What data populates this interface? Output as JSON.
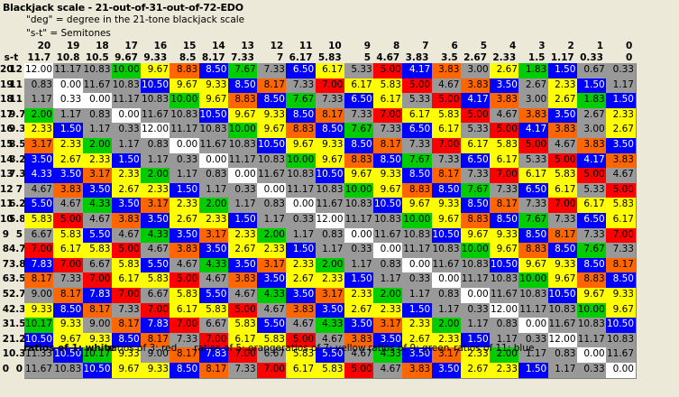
{
  "title": "Blackjack scale - 21-out-of-31-out-of-72-EDO",
  "notes": [
    "\"deg\" = degree in the 21-tone blackjack scale",
    "\"s-t\" = Semitones"
  ],
  "header": {
    "st_label": "s-t",
    "degrees": [
      "20",
      "19",
      "18",
      "17",
      "16",
      "15",
      "14",
      "13",
      "12",
      "11",
      "10",
      "9",
      "8",
      "7",
      "6",
      "5",
      "4",
      "3",
      "2",
      "1",
      "0"
    ],
    "semitones": [
      "11.7",
      "10.8",
      "10.5",
      "9.67",
      "9.33",
      "8.5",
      "8.17",
      "7.33",
      "7",
      "6.17",
      "5.83",
      "5",
      "4.67",
      "3.83",
      "3.5",
      "2.67",
      "2.33",
      "1.5",
      "1.17",
      "0.33",
      "0"
    ]
  },
  "colors": {
    "W": "#ffffff",
    "G": "#999999",
    "R": "#ff0000",
    "O": "#ff6600",
    "Y": "#ffff00",
    "N": "#00cc00",
    "B": "#0000ff",
    "K": "#000000"
  },
  "rows": [
    {
      "deg": "20",
      "st": "12",
      "cells": [
        "12.00",
        "11.17",
        "10.83",
        "10.00",
        "9.67",
        "8.83",
        "8.50",
        "7.67",
        "7.33",
        "6.50",
        "6.17",
        "5.33",
        "5.00",
        "4.17",
        "3.83",
        "3.00",
        "2.67",
        "1.83",
        "1.50",
        "0.67",
        "0.33"
      ],
      "colors": [
        "W",
        "G",
        "G",
        "N",
        "Y",
        "O",
        "B",
        "N",
        "G",
        "B",
        "Y",
        "G",
        "R",
        "B",
        "O",
        "G",
        "Y",
        "N",
        "B",
        "G",
        "G"
      ]
    },
    {
      "deg": "19",
      "st": "11",
      "cells": [
        "0.83",
        "0.00",
        "11.67",
        "10.83",
        "10.50",
        "9.67",
        "9.33",
        "8.50",
        "8.17",
        "7.33",
        "7.00",
        "6.17",
        "5.83",
        "5.00",
        "4.67",
        "3.83",
        "3.50",
        "2.67",
        "2.33",
        "1.50",
        "1.17"
      ],
      "colors": [
        "G",
        "W",
        "G",
        "G",
        "B",
        "Y",
        "Y",
        "B",
        "O",
        "G",
        "R",
        "Y",
        "Y",
        "R",
        "G",
        "O",
        "B",
        "G",
        "Y",
        "B",
        "G"
      ]
    },
    {
      "deg": "18",
      "st": "11",
      "cells": [
        "1.17",
        "0.33",
        "0.00",
        "11.17",
        "10.83",
        "10.00",
        "9.67",
        "8.83",
        "8.50",
        "7.67",
        "7.33",
        "6.50",
        "6.17",
        "5.33",
        "5.00",
        "4.17",
        "3.83",
        "3.00",
        "2.67",
        "1.83",
        "1.50"
      ],
      "colors": [
        "G",
        "W",
        "W",
        "G",
        "G",
        "N",
        "Y",
        "O",
        "B",
        "N",
        "G",
        "B",
        "Y",
        "G",
        "R",
        "B",
        "O",
        "G",
        "Y",
        "N",
        "B"
      ]
    },
    {
      "deg": "17",
      "st": "9.7",
      "cells": [
        "2.00",
        "1.17",
        "0.83",
        "0.00",
        "11.67",
        "10.83",
        "10.50",
        "9.67",
        "9.33",
        "8.50",
        "8.17",
        "7.33",
        "7.00",
        "6.17",
        "5.83",
        "5.00",
        "4.67",
        "3.83",
        "3.50",
        "2.67",
        "2.33"
      ],
      "colors": [
        "N",
        "G",
        "G",
        "W",
        "G",
        "G",
        "B",
        "Y",
        "Y",
        "B",
        "O",
        "G",
        "R",
        "Y",
        "Y",
        "R",
        "G",
        "O",
        "B",
        "G",
        "Y"
      ]
    },
    {
      "deg": "16",
      "st": "9.3",
      "cells": [
        "2.33",
        "1.50",
        "1.17",
        "0.33",
        "12.00",
        "11.17",
        "10.83",
        "10.00",
        "9.67",
        "8.83",
        "8.50",
        "7.67",
        "7.33",
        "6.50",
        "6.17",
        "5.33",
        "5.00",
        "4.17",
        "3.83",
        "3.00",
        "2.67"
      ],
      "colors": [
        "Y",
        "B",
        "G",
        "G",
        "W",
        "G",
        "G",
        "N",
        "Y",
        "O",
        "B",
        "N",
        "G",
        "B",
        "Y",
        "G",
        "R",
        "B",
        "O",
        "G",
        "Y"
      ]
    },
    {
      "deg": "15",
      "st": "8.5",
      "cells": [
        "3.17",
        "2.33",
        "2.00",
        "1.17",
        "0.83",
        "0.00",
        "11.67",
        "10.83",
        "10.50",
        "9.67",
        "9.33",
        "8.50",
        "8.17",
        "7.33",
        "7.00",
        "6.17",
        "5.83",
        "5.00",
        "4.67",
        "3.83",
        "3.50"
      ],
      "colors": [
        "O",
        "Y",
        "N",
        "G",
        "G",
        "W",
        "G",
        "G",
        "B",
        "Y",
        "Y",
        "B",
        "O",
        "G",
        "R",
        "Y",
        "Y",
        "R",
        "G",
        "O",
        "B"
      ]
    },
    {
      "deg": "14",
      "st": "8.2",
      "cells": [
        "3.50",
        "2.67",
        "2.33",
        "1.50",
        "1.17",
        "0.33",
        "0.00",
        "11.17",
        "10.83",
        "10.00",
        "9.67",
        "8.83",
        "8.50",
        "7.67",
        "7.33",
        "6.50",
        "6.17",
        "5.33",
        "5.00",
        "4.17",
        "3.83"
      ],
      "colors": [
        "B",
        "Y",
        "Y",
        "B",
        "G",
        "G",
        "W",
        "G",
        "G",
        "N",
        "Y",
        "O",
        "B",
        "N",
        "G",
        "B",
        "Y",
        "G",
        "R",
        "B",
        "O"
      ]
    },
    {
      "deg": "13",
      "st": "7.3",
      "cells": [
        "4.33",
        "3.50",
        "3.17",
        "2.33",
        "2.00",
        "1.17",
        "0.83",
        "0.00",
        "11.67",
        "10.83",
        "10.50",
        "9.67",
        "9.33",
        "8.50",
        "8.17",
        "7.33",
        "7.00",
        "6.17",
        "5.83",
        "5.00",
        "4.67"
      ],
      "colors": [
        "B",
        "B",
        "O",
        "Y",
        "N",
        "G",
        "G",
        "W",
        "G",
        "G",
        "B",
        "Y",
        "Y",
        "B",
        "O",
        "G",
        "R",
        "Y",
        "Y",
        "R",
        "G"
      ]
    },
    {
      "deg": "12",
      "st": "7",
      "cells": [
        "4.67",
        "3.83",
        "3.50",
        "2.67",
        "2.33",
        "1.50",
        "1.17",
        "0.33",
        "0.00",
        "11.17",
        "10.83",
        "10.00",
        "9.67",
        "8.83",
        "8.50",
        "7.67",
        "7.33",
        "6.50",
        "6.17",
        "5.33",
        "5.00"
      ],
      "colors": [
        "G",
        "O",
        "B",
        "Y",
        "Y",
        "B",
        "G",
        "G",
        "W",
        "G",
        "G",
        "N",
        "Y",
        "O",
        "B",
        "N",
        "G",
        "B",
        "Y",
        "G",
        "R"
      ]
    },
    {
      "deg": "11",
      "st": "6.2",
      "cells": [
        "5.50",
        "4.67",
        "4.33",
        "3.50",
        "3.17",
        "2.33",
        "2.00",
        "1.17",
        "0.83",
        "0.00",
        "11.67",
        "10.83",
        "10.50",
        "9.67",
        "9.33",
        "8.50",
        "8.17",
        "7.33",
        "7.00",
        "6.17",
        "5.83"
      ],
      "colors": [
        "B",
        "G",
        "N",
        "B",
        "O",
        "Y",
        "N",
        "G",
        "G",
        "W",
        "G",
        "G",
        "B",
        "Y",
        "Y",
        "B",
        "O",
        "G",
        "R",
        "Y",
        "Y"
      ]
    },
    {
      "deg": "10",
      "st": "5.8",
      "cells": [
        "5.83",
        "5.00",
        "4.67",
        "3.83",
        "3.50",
        "2.67",
        "2.33",
        "1.50",
        "1.17",
        "0.33",
        "12.00",
        "11.17",
        "10.83",
        "10.00",
        "9.67",
        "8.83",
        "8.50",
        "7.67",
        "7.33",
        "6.50",
        "6.17"
      ],
      "colors": [
        "Y",
        "R",
        "G",
        "O",
        "B",
        "Y",
        "Y",
        "B",
        "G",
        "G",
        "W",
        "G",
        "G",
        "N",
        "Y",
        "O",
        "B",
        "N",
        "G",
        "B",
        "Y"
      ]
    },
    {
      "deg": "9",
      "st": "5",
      "cells": [
        "6.67",
        "5.83",
        "5.50",
        "4.67",
        "4.33",
        "3.50",
        "3.17",
        "2.33",
        "2.00",
        "1.17",
        "0.83",
        "0.00",
        "11.67",
        "10.83",
        "10.50",
        "9.67",
        "9.33",
        "8.50",
        "8.17",
        "7.33",
        "7.00"
      ],
      "colors": [
        "G",
        "Y",
        "B",
        "G",
        "N",
        "B",
        "O",
        "Y",
        "N",
        "G",
        "G",
        "W",
        "G",
        "G",
        "B",
        "Y",
        "Y",
        "B",
        "O",
        "G",
        "R"
      ]
    },
    {
      "deg": "8",
      "st": "4.7",
      "cells": [
        "7.00",
        "6.17",
        "5.83",
        "5.00",
        "4.67",
        "3.83",
        "3.50",
        "2.67",
        "2.33",
        "1.50",
        "1.17",
        "0.33",
        "0.00",
        "11.17",
        "10.83",
        "10.00",
        "9.67",
        "8.83",
        "8.50",
        "7.67",
        "7.33"
      ],
      "colors": [
        "R",
        "Y",
        "Y",
        "R",
        "G",
        "O",
        "B",
        "Y",
        "Y",
        "B",
        "G",
        "G",
        "W",
        "G",
        "G",
        "N",
        "Y",
        "O",
        "B",
        "N",
        "G"
      ]
    },
    {
      "deg": "7",
      "st": "3.8",
      "cells": [
        "7.83",
        "7.00",
        "6.67",
        "5.83",
        "5.50",
        "4.67",
        "4.33",
        "3.50",
        "3.17",
        "2.33",
        "2.00",
        "1.17",
        "0.83",
        "0.00",
        "11.67",
        "10.83",
        "10.50",
        "9.67",
        "9.33",
        "8.50",
        "8.17"
      ],
      "colors": [
        "B",
        "R",
        "G",
        "Y",
        "B",
        "G",
        "N",
        "B",
        "O",
        "Y",
        "N",
        "G",
        "G",
        "W",
        "G",
        "G",
        "B",
        "Y",
        "Y",
        "B",
        "O"
      ]
    },
    {
      "deg": "6",
      "st": "3.5",
      "cells": [
        "8.17",
        "7.33",
        "7.00",
        "6.17",
        "5.83",
        "5.00",
        "4.67",
        "3.83",
        "3.50",
        "2.67",
        "2.33",
        "1.50",
        "1.17",
        "0.33",
        "0.00",
        "11.17",
        "10.83",
        "10.00",
        "9.67",
        "8.83",
        "8.50"
      ],
      "colors": [
        "O",
        "G",
        "R",
        "Y",
        "Y",
        "R",
        "G",
        "O",
        "B",
        "Y",
        "Y",
        "B",
        "G",
        "G",
        "W",
        "G",
        "G",
        "N",
        "Y",
        "O",
        "B"
      ]
    },
    {
      "deg": "5",
      "st": "2.7",
      "cells": [
        "9.00",
        "8.17",
        "7.83",
        "7.00",
        "6.67",
        "5.83",
        "5.50",
        "4.67",
        "4.33",
        "3.50",
        "3.17",
        "2.33",
        "2.00",
        "1.17",
        "0.83",
        "0.00",
        "11.67",
        "10.83",
        "10.50",
        "9.67",
        "9.33"
      ],
      "colors": [
        "G",
        "O",
        "B",
        "R",
        "G",
        "Y",
        "B",
        "G",
        "N",
        "B",
        "O",
        "Y",
        "N",
        "G",
        "G",
        "W",
        "G",
        "G",
        "B",
        "Y",
        "Y"
      ]
    },
    {
      "deg": "4",
      "st": "2.3",
      "cells": [
        "9.33",
        "8.50",
        "8.17",
        "7.33",
        "7.00",
        "6.17",
        "5.83",
        "5.00",
        "4.67",
        "3.83",
        "3.50",
        "2.67",
        "2.33",
        "1.50",
        "1.17",
        "0.33",
        "12.00",
        "11.17",
        "10.83",
        "10.00",
        "9.67"
      ],
      "colors": [
        "Y",
        "B",
        "O",
        "G",
        "R",
        "Y",
        "Y",
        "R",
        "G",
        "O",
        "B",
        "Y",
        "Y",
        "B",
        "G",
        "G",
        "W",
        "G",
        "G",
        "N",
        "Y"
      ]
    },
    {
      "deg": "3",
      "st": "1.5",
      "cells": [
        "10.17",
        "9.33",
        "9.00",
        "8.17",
        "7.83",
        "7.00",
        "6.67",
        "5.83",
        "5.50",
        "4.67",
        "4.33",
        "3.50",
        "3.17",
        "2.33",
        "2.00",
        "1.17",
        "0.83",
        "0.00",
        "11.67",
        "10.83",
        "10.50"
      ],
      "colors": [
        "N",
        "Y",
        "G",
        "O",
        "B",
        "R",
        "G",
        "Y",
        "B",
        "G",
        "N",
        "B",
        "O",
        "Y",
        "N",
        "G",
        "G",
        "W",
        "G",
        "G",
        "B"
      ]
    },
    {
      "deg": "2",
      "st": "1.2",
      "cells": [
        "10.50",
        "9.67",
        "9.33",
        "8.50",
        "8.17",
        "7.33",
        "7.00",
        "6.17",
        "5.83",
        "5.00",
        "4.67",
        "3.83",
        "3.50",
        "2.67",
        "2.33",
        "1.50",
        "1.17",
        "0.33",
        "12.00",
        "11.17",
        "10.83"
      ],
      "colors": [
        "B",
        "Y",
        "Y",
        "B",
        "O",
        "G",
        "R",
        "Y",
        "Y",
        "R",
        "G",
        "O",
        "B",
        "Y",
        "Y",
        "B",
        "G",
        "G",
        "W",
        "G",
        "G"
      ]
    },
    {
      "deg": "1",
      "st": "0.3",
      "cells": [
        "11.33",
        "10.50",
        "10.17",
        "9.33",
        "9.00",
        "8.17",
        "7.83",
        "7.00",
        "6.67",
        "5.83",
        "5.50",
        "4.67",
        "4.33",
        "3.50",
        "3.17",
        "2.33",
        "2.00",
        "1.17",
        "0.83",
        "0.00",
        "11.67"
      ],
      "colors": [
        "G",
        "B",
        "N",
        "Y",
        "G",
        "O",
        "B",
        "R",
        "G",
        "Y",
        "B",
        "G",
        "N",
        "B",
        "O",
        "Y",
        "N",
        "G",
        "G",
        "W",
        "G"
      ]
    },
    {
      "deg": "0",
      "st": "0",
      "cells": [
        "11.67",
        "10.83",
        "10.50",
        "9.67",
        "9.33",
        "8.50",
        "8.17",
        "7.33",
        "7.00",
        "6.17",
        "5.83",
        "5.00",
        "4.67",
        "3.83",
        "3.50",
        "2.67",
        "2.33",
        "1.50",
        "1.17",
        "0.33",
        "0.00"
      ],
      "colors": [
        "G",
        "G",
        "B",
        "Y",
        "Y",
        "B",
        "O",
        "G",
        "R",
        "Y",
        "Y",
        "R",
        "G",
        "O",
        "B",
        "Y",
        "Y",
        "B",
        "G",
        "G",
        "W"
      ]
    }
  ],
  "legend": [
    "ratios of 1: white",
    "ratios of 3: red",
    "ratios of 5: orange",
    "ratios of 7: yellow",
    "ratios of 9: green",
    "ratios of 11: blue"
  ]
}
